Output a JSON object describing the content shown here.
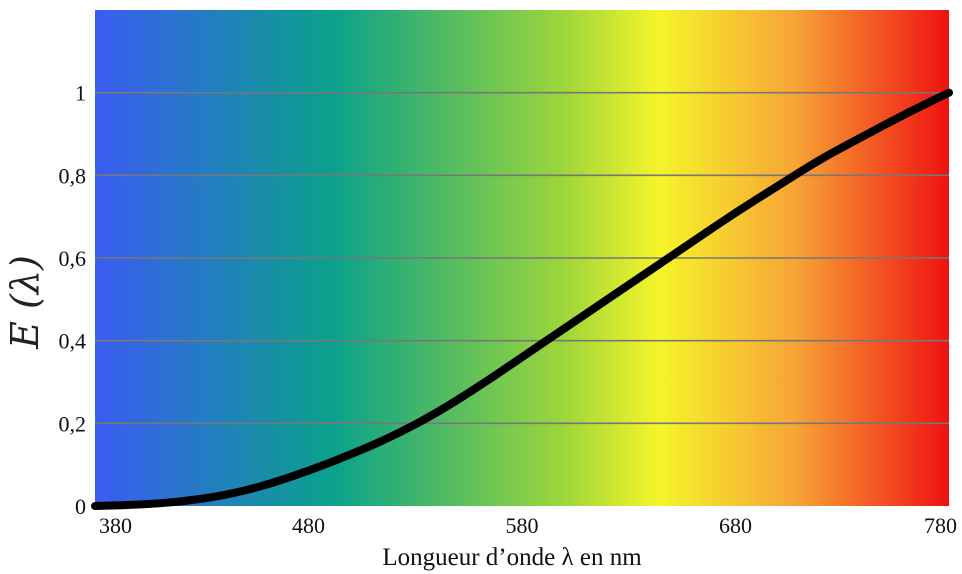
{
  "chart_data": {
    "type": "line",
    "title": "",
    "xlabel": "Longueur d’onde λ en nm",
    "ylabel": "E (λ)",
    "xlim": [
      380,
      780
    ],
    "ylim": [
      0,
      1.2
    ],
    "xticks": [
      380,
      480,
      580,
      680,
      780
    ],
    "xtick_labels": [
      "380",
      "480",
      "580",
      "680",
      "780"
    ],
    "yticks": [
      0,
      0.2,
      0.4,
      0.6,
      0.8,
      1
    ],
    "ytick_labels": [
      "0",
      "0,2",
      "0,4",
      "0,6",
      "0,8",
      "1"
    ],
    "grid": "horizontal",
    "background": "visible spectrum gradient (blue → green → yellow → red)",
    "spectrum_colors": [
      "#3a5cf2",
      "#0aa28a",
      "#9ed63a",
      "#f5f52a",
      "#f6a436",
      "#ef1111"
    ],
    "series": [
      {
        "color": "#000000",
        "x": [
          380,
          400,
          420,
          440,
          460,
          480,
          500,
          520,
          540,
          560,
          580,
          600,
          620,
          640,
          660,
          680,
          700,
          720,
          740,
          760,
          780
        ],
        "y": [
          0,
          0.003,
          0.01,
          0.025,
          0.05,
          0.085,
          0.125,
          0.17,
          0.225,
          0.29,
          0.36,
          0.43,
          0.5,
          0.57,
          0.64,
          0.71,
          0.775,
          0.84,
          0.895,
          0.95,
          1.0
        ]
      }
    ]
  }
}
